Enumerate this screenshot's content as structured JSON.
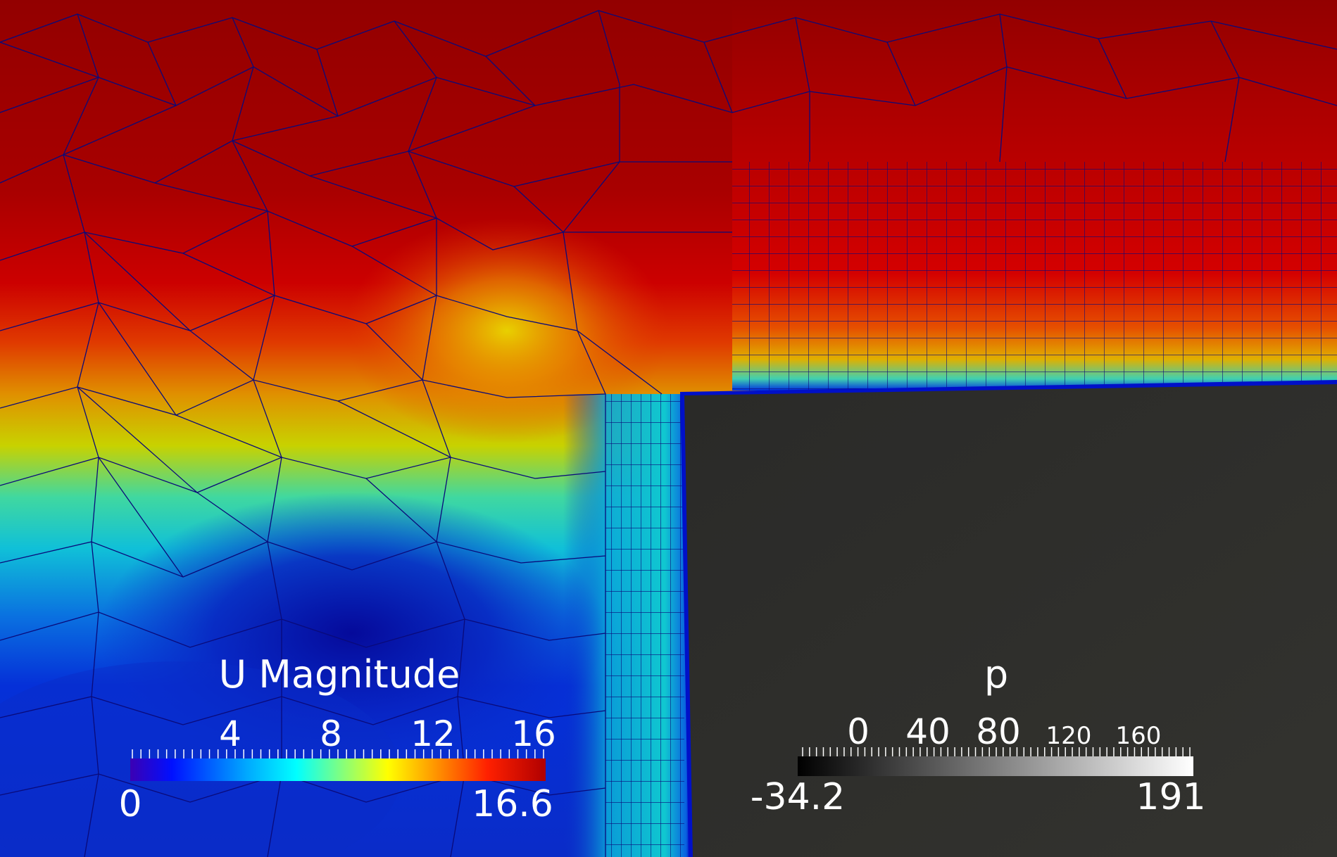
{
  "u_legend": {
    "title": "U Magnitude",
    "ticks": [
      "4",
      "8",
      "12",
      "16"
    ],
    "min_label": "0",
    "max_label": "16.6",
    "range": [
      0,
      16.6
    ],
    "colormap": [
      "#3b00b4",
      "#0000ff",
      "#00aaff",
      "#00ffff",
      "#80ff80",
      "#ffff00",
      "#ff8800",
      "#ff0000",
      "#b00000"
    ]
  },
  "p_legend": {
    "title": "p",
    "ticks_major": [
      "0",
      "40",
      "80"
    ],
    "ticks_minor": [
      "120",
      "160"
    ],
    "min_label": "-34.2",
    "max_label": "191",
    "range": [
      -34.2,
      191
    ],
    "colormap": [
      "#000000",
      "#ffffff"
    ]
  },
  "colors": {
    "mesh_edges": "#0a0a7a",
    "obstacle": "#2d2d2b",
    "field_high": "#a00000",
    "field_low": "#0a23c8"
  }
}
